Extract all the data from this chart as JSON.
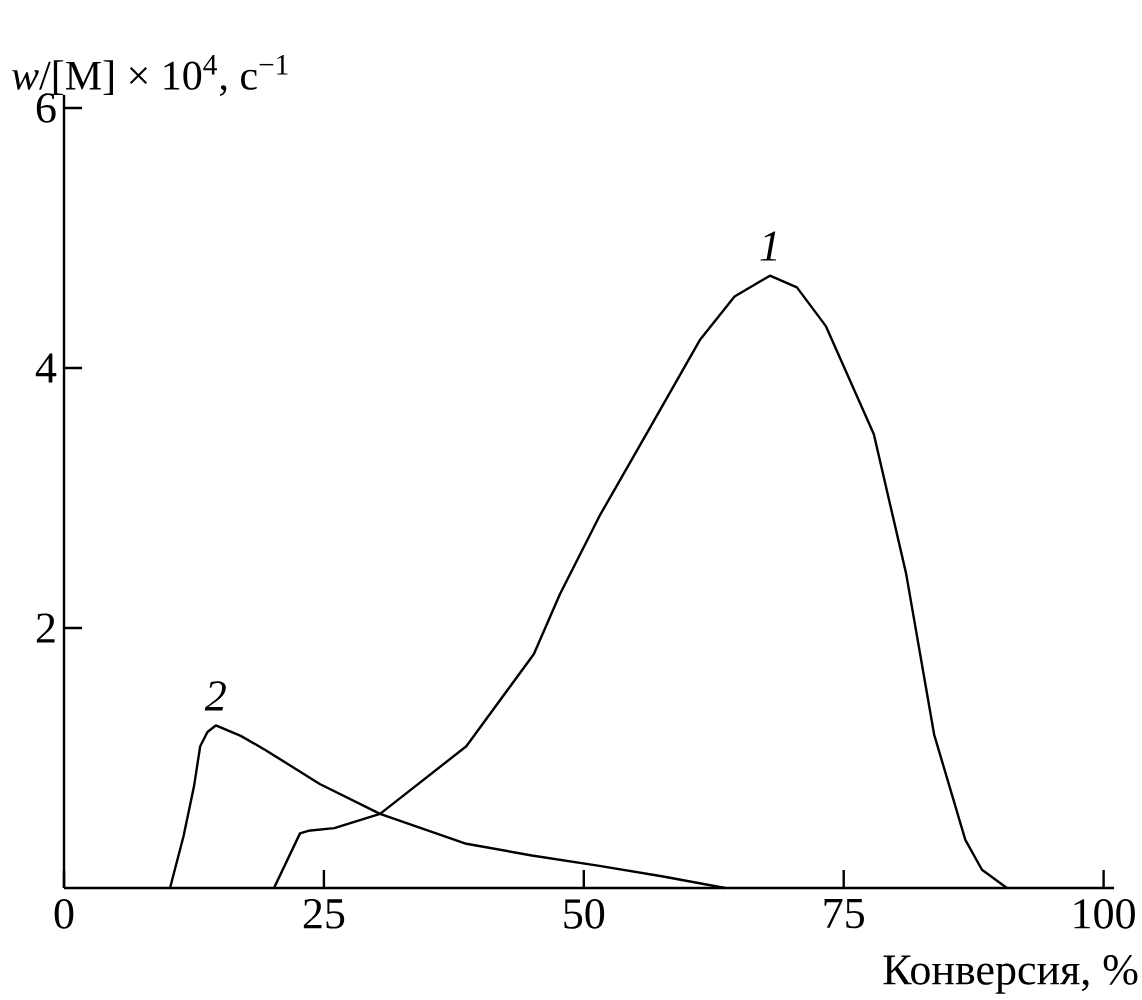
{
  "chart_data": {
    "type": "line",
    "xlabel": "Конверсия, %",
    "ylabel": "*w*/[M] × 10$^{4}$, c$^{−1}$",
    "xlim": [
      0,
      101
    ],
    "ylim": [
      0,
      6.1
    ],
    "xticks": [
      0,
      25,
      50,
      75,
      100
    ],
    "yticks": [
      2,
      4,
      6
    ],
    "grid": false,
    "legend": false,
    "series": [
      {
        "name": "1",
        "color": "#000000",
        "x": [
          20.2,
          22.7,
          23.5,
          26,
          30.4,
          38.7,
          45.2,
          47.7,
          51.5,
          56,
          61.2,
          64.5,
          67.9,
          70.5,
          73.3,
          77.9,
          81,
          83.7,
          86.7,
          88.3,
          90.7
        ],
        "values": [
          0,
          0.42,
          0.44,
          0.46,
          0.57,
          1.09,
          1.8,
          2.26,
          2.86,
          3.49,
          4.22,
          4.55,
          4.71,
          4.62,
          4.32,
          3.49,
          2.42,
          1.18,
          0.37,
          0.14,
          0
        ]
      },
      {
        "name": "2",
        "color": "#000000",
        "x": [
          10.2,
          11.5,
          12.5,
          13.1,
          13.8,
          14.6,
          17,
          19.4,
          24.6,
          30.4,
          38.7,
          45,
          51.5,
          57.5,
          63.6
        ],
        "values": [
          0,
          0.4,
          0.78,
          1.09,
          1.2,
          1.25,
          1.17,
          1.06,
          0.8,
          0.57,
          0.34,
          0.25,
          0.17,
          0.09,
          0
        ]
      }
    ]
  }
}
